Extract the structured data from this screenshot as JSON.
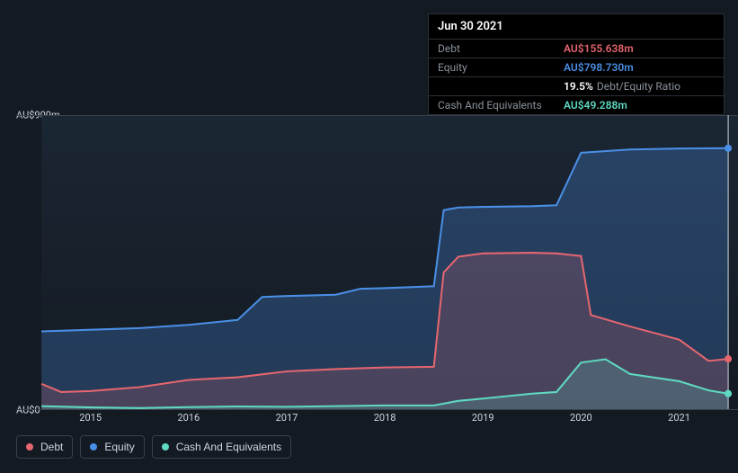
{
  "chart": {
    "type": "area",
    "background_color": "#141a22",
    "plot_bg_gradient_top": "#1b2634",
    "plot_bg_gradient_bottom": "#141a22",
    "border_color": "#3a4048",
    "grid_color": "#3a4048",
    "text_color": "#cfd6e0",
    "ymin": 0,
    "ymax": 900,
    "y_ticks": [
      {
        "v": 0,
        "label": "AU$0"
      },
      {
        "v": 900,
        "label": "AU$900m"
      }
    ],
    "x_ticks": [
      "2015",
      "2016",
      "2017",
      "2018",
      "2019",
      "2020",
      "2021"
    ],
    "x_range": [
      2014.5,
      2021.6
    ],
    "cursor_x": 2021.5,
    "series": [
      {
        "id": "equity",
        "label": "Equity",
        "color": "#4a8fe6",
        "area_color": "#4a8fe6",
        "area_opacity": 0.28,
        "end_dot": true,
        "points": [
          [
            2014.5,
            240
          ],
          [
            2015.0,
            245
          ],
          [
            2015.5,
            250
          ],
          [
            2016.0,
            260
          ],
          [
            2016.5,
            275
          ],
          [
            2016.75,
            345
          ],
          [
            2017.0,
            348
          ],
          [
            2017.5,
            352
          ],
          [
            2017.75,
            370
          ],
          [
            2018.0,
            372
          ],
          [
            2018.5,
            378
          ],
          [
            2018.6,
            610
          ],
          [
            2018.75,
            618
          ],
          [
            2019.0,
            620
          ],
          [
            2019.5,
            622
          ],
          [
            2019.75,
            625
          ],
          [
            2020.0,
            785
          ],
          [
            2020.5,
            795
          ],
          [
            2021.0,
            798
          ],
          [
            2021.5,
            799
          ]
        ]
      },
      {
        "id": "debt",
        "label": "Debt",
        "color": "#e66670",
        "area_color": "#e66670",
        "area_opacity": 0.2,
        "end_dot": true,
        "points": [
          [
            2014.5,
            80
          ],
          [
            2014.7,
            55
          ],
          [
            2015.0,
            58
          ],
          [
            2015.5,
            70
          ],
          [
            2016.0,
            92
          ],
          [
            2016.5,
            100
          ],
          [
            2017.0,
            118
          ],
          [
            2017.5,
            125
          ],
          [
            2018.0,
            130
          ],
          [
            2018.5,
            132
          ],
          [
            2018.6,
            420
          ],
          [
            2018.75,
            468
          ],
          [
            2019.0,
            478
          ],
          [
            2019.5,
            480
          ],
          [
            2019.75,
            478
          ],
          [
            2020.0,
            470
          ],
          [
            2020.1,
            290
          ],
          [
            2020.5,
            255
          ],
          [
            2021.0,
            215
          ],
          [
            2021.3,
            150
          ],
          [
            2021.5,
            156
          ]
        ]
      },
      {
        "id": "cash",
        "label": "Cash And Equivalents",
        "color": "#5fd9c1",
        "area_color": "#5fd9c1",
        "area_opacity": 0.2,
        "end_dot": true,
        "points": [
          [
            2014.5,
            12
          ],
          [
            2015.0,
            8
          ],
          [
            2015.5,
            6
          ],
          [
            2016.0,
            9
          ],
          [
            2016.5,
            11
          ],
          [
            2017.0,
            10
          ],
          [
            2017.5,
            12
          ],
          [
            2018.0,
            14
          ],
          [
            2018.5,
            14
          ],
          [
            2018.75,
            28
          ],
          [
            2019.0,
            35
          ],
          [
            2019.5,
            50
          ],
          [
            2019.75,
            55
          ],
          [
            2020.0,
            145
          ],
          [
            2020.25,
            155
          ],
          [
            2020.5,
            110
          ],
          [
            2021.0,
            88
          ],
          [
            2021.3,
            60
          ],
          [
            2021.5,
            50
          ]
        ]
      }
    ]
  },
  "tooltip": {
    "date": "Jun 30 2021",
    "rows": [
      {
        "label": "Debt",
        "value": "AU$155.638m",
        "color": "#e66670"
      },
      {
        "label": "Equity",
        "value": "AU$798.730m",
        "color": "#4a8fe6"
      },
      {
        "label": "",
        "ratio": "19.5%",
        "ratio_label": "Debt/Equity Ratio"
      },
      {
        "label": "Cash And Equivalents",
        "value": "AU$49.288m",
        "color": "#5fd9c1"
      }
    ]
  },
  "legend": {
    "items": [
      {
        "label": "Debt",
        "color": "#e66670"
      },
      {
        "label": "Equity",
        "color": "#4a8fe6"
      },
      {
        "label": "Cash And Equivalents",
        "color": "#5fd9c1"
      }
    ]
  }
}
